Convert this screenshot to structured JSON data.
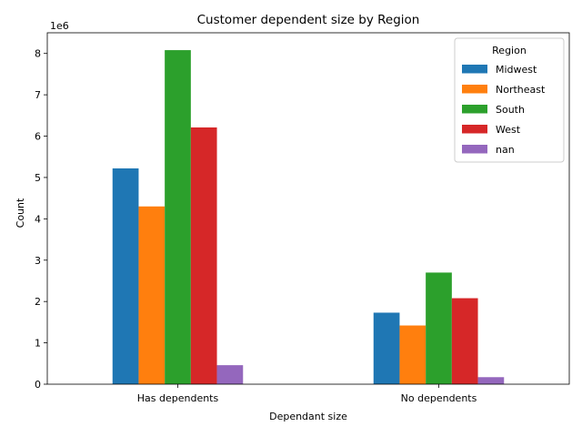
{
  "chart_data": {
    "type": "bar",
    "title": "Customer dependent size by Region",
    "xlabel": "Dependant size",
    "ylabel": "Count",
    "y_offset_label": "1e6",
    "categories": [
      "Has dependents",
      "No dependents"
    ],
    "ylim": [
      0,
      8500000
    ],
    "y_ticks": [
      0,
      1000000,
      2000000,
      3000000,
      4000000,
      5000000,
      6000000,
      7000000,
      8000000
    ],
    "y_tick_labels": [
      "0",
      "1",
      "2",
      "3",
      "4",
      "5",
      "6",
      "7",
      "8"
    ],
    "grid": false,
    "legend": {
      "title": "Region",
      "placement": "top-right"
    },
    "series": [
      {
        "name": "Midwest",
        "color": "#1f77b4",
        "values": [
          5220000,
          1730000
        ]
      },
      {
        "name": "Northeast",
        "color": "#ff7f0e",
        "values": [
          4300000,
          1420000
        ]
      },
      {
        "name": "South",
        "color": "#2ca02c",
        "values": [
          8080000,
          2700000
        ]
      },
      {
        "name": "West",
        "color": "#d62728",
        "values": [
          6210000,
          2080000
        ]
      },
      {
        "name": "nan",
        "color": "#9467bd",
        "values": [
          460000,
          170000
        ]
      }
    ]
  }
}
